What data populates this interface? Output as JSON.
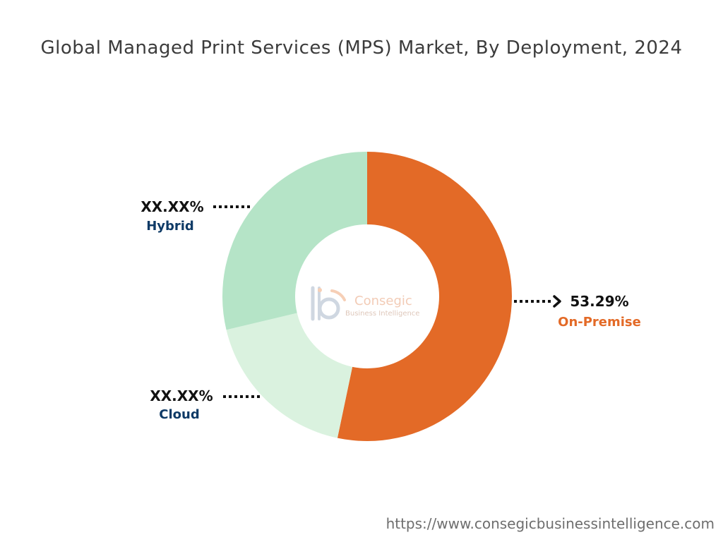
{
  "title": "Global Managed Print Services (MPS) Market, By Deployment, 2024",
  "chart_data": {
    "type": "donut",
    "slices": [
      {
        "label": "On-Premise",
        "value": 53.29,
        "display": "53.29%",
        "color": "#E36A27",
        "label_color": "#E36A27"
      },
      {
        "label": "Cloud",
        "value": 18.0,
        "display": "XX.XX%",
        "color": "#DAF2DF",
        "label_color": "#0E3A66"
      },
      {
        "label": "Hybrid",
        "value": 28.71,
        "display": "XX.XX%",
        "color": "#B5E4C7",
        "label_color": "#0E3A66"
      }
    ]
  },
  "logo": {
    "name": "Consegic",
    "tagline": "Business Intelligence"
  },
  "footer": "https://www.consegicbusinessintelligence.com"
}
